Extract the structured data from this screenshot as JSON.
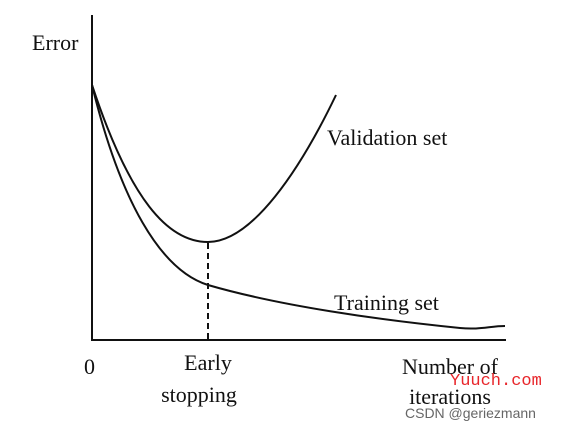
{
  "axes": {
    "y_label": "Error",
    "origin": "0",
    "x_label": [
      "Number of",
      "iterations"
    ]
  },
  "curves": [
    {
      "label": "Validation set"
    },
    {
      "label": "Training set"
    }
  ],
  "marker": {
    "label": [
      "Early",
      "stopping"
    ]
  },
  "watermarks": [
    "Yuuch.com",
    "CSDN @geriezmann"
  ]
}
